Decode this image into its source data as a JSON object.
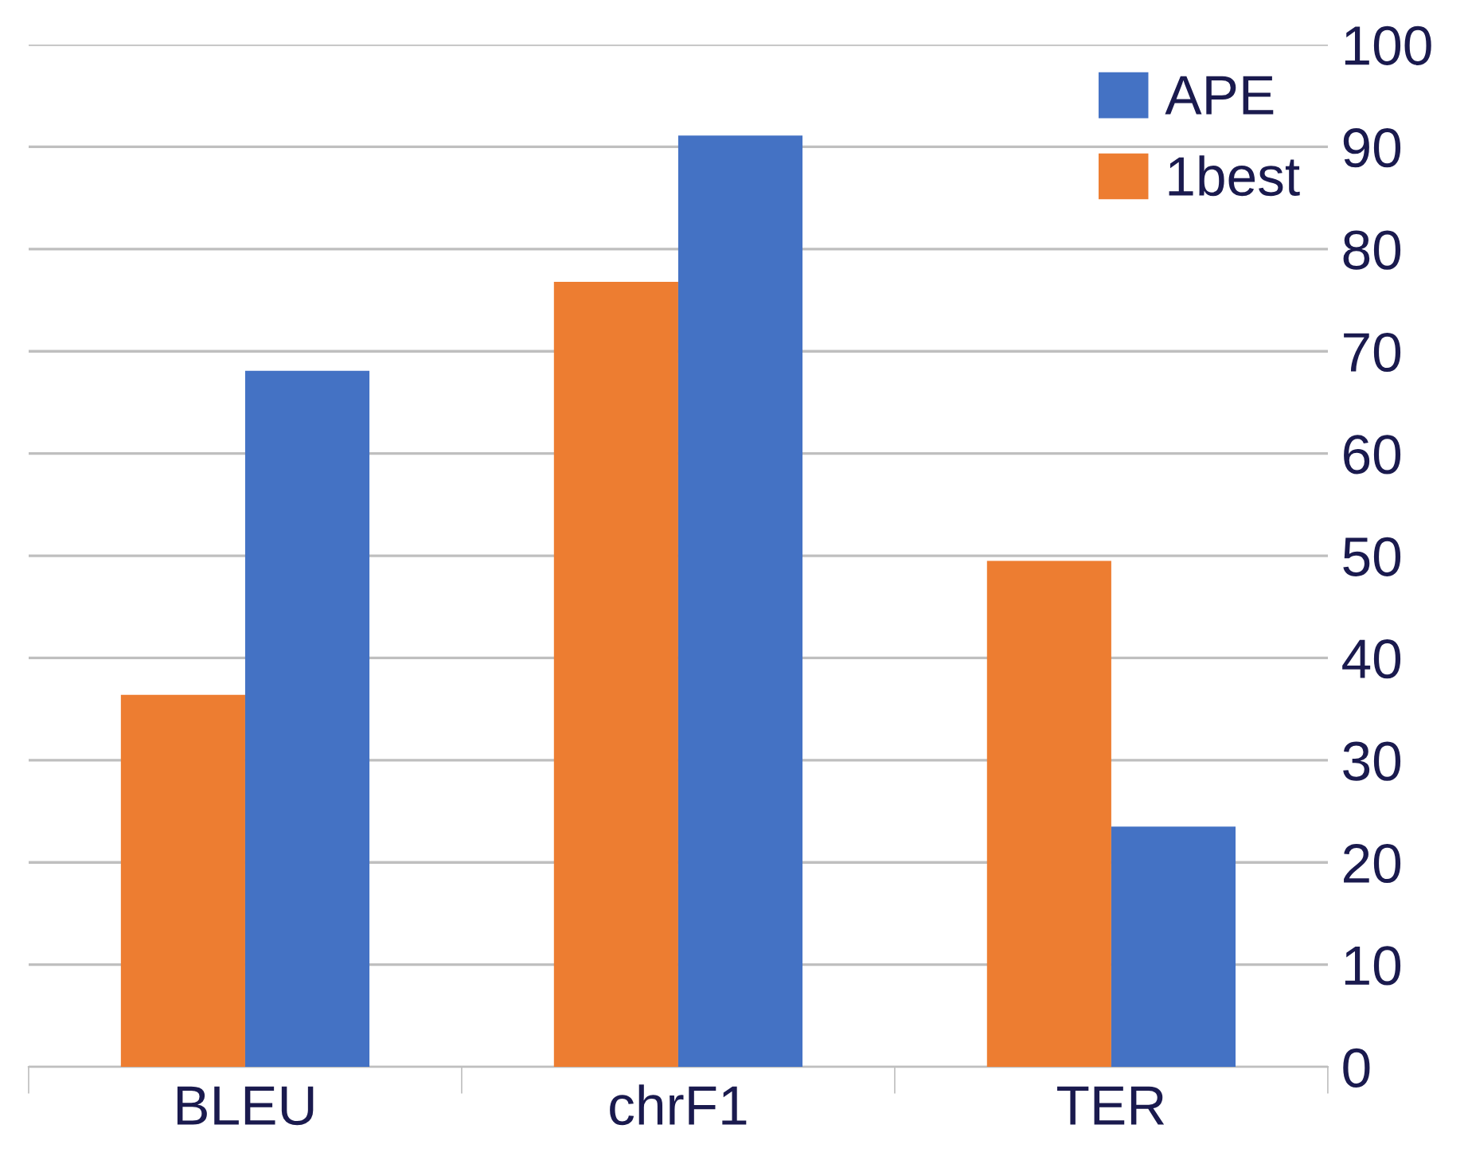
{
  "chart_data": {
    "type": "bar",
    "categories": [
      "BLEU",
      "chrF1",
      "TER"
    ],
    "series": [
      {
        "name": "1best",
        "color": "#ed7d31",
        "values": [
          36.4,
          76.8,
          49.5
        ]
      },
      {
        "name": "APE",
        "color": "#4472c4",
        "values": [
          68.1,
          91.1,
          23.5
        ]
      }
    ],
    "ylim": [
      0,
      100
    ],
    "yticks": [
      0,
      10,
      20,
      30,
      40,
      50,
      60,
      70,
      80,
      90,
      100
    ],
    "grid": "y",
    "legend": "top right"
  }
}
